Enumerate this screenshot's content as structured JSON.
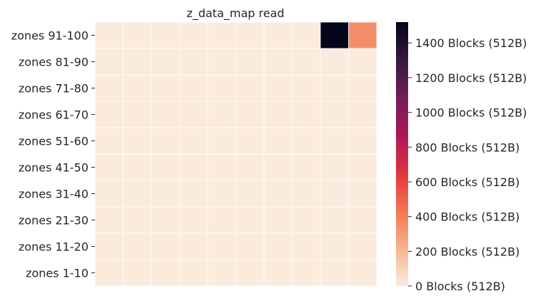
{
  "chart_data": {
    "type": "heatmap",
    "title": "z_data_map read",
    "xlabel": "",
    "ylabel": "",
    "rows": [
      "zones 91-100",
      "zones 81-90",
      "zones 71-80",
      "zones 61-70",
      "zones 51-60",
      "zones 41-50",
      "zones 31-40",
      "zones 21-30",
      "zones 11-20",
      "zones 1-10"
    ],
    "columns": 10,
    "values": [
      [
        0,
        0,
        0,
        0,
        0,
        0,
        0,
        0,
        1520,
        350
      ],
      [
        0,
        0,
        0,
        0,
        0,
        0,
        0,
        0,
        0,
        0
      ],
      [
        0,
        0,
        0,
        0,
        0,
        0,
        0,
        0,
        0,
        0
      ],
      [
        0,
        0,
        0,
        0,
        0,
        0,
        0,
        0,
        0,
        0
      ],
      [
        0,
        0,
        0,
        0,
        0,
        0,
        0,
        0,
        0,
        0
      ],
      [
        0,
        0,
        0,
        0,
        0,
        0,
        0,
        0,
        0,
        0
      ],
      [
        0,
        0,
        0,
        0,
        0,
        0,
        0,
        0,
        0,
        0
      ],
      [
        0,
        0,
        0,
        0,
        0,
        0,
        0,
        0,
        0,
        0
      ],
      [
        0,
        0,
        0,
        0,
        0,
        0,
        0,
        0,
        0,
        0
      ],
      [
        0,
        0,
        0,
        0,
        0,
        0,
        0,
        0,
        0,
        0
      ]
    ],
    "colorbar": {
      "range": [
        0,
        1520
      ],
      "ticks": [
        0,
        200,
        400,
        600,
        800,
        1000,
        1200,
        1400
      ],
      "tick_labels": [
        "0 Blocks (512B)",
        "200 Blocks (512B)",
        "400 Blocks (512B)",
        "600 Blocks (512B)",
        "800 Blocks (512B)",
        "1000 Blocks (512B)",
        "1200 Blocks (512B)",
        "1400 Blocks (512B)"
      ],
      "colormap": [
        "#faebdd",
        "#f6b48f",
        "#f37651",
        "#e13342",
        "#ad1759",
        "#701f57",
        "#35193e",
        "#03051a"
      ],
      "placement": "right"
    },
    "cell_border_color": "#ffffff",
    "x_tick_labels_visible": false
  }
}
